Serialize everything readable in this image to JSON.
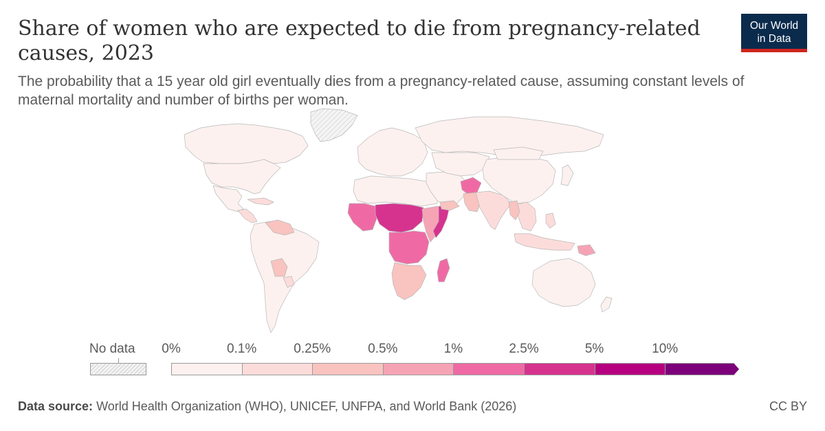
{
  "header": {
    "title": "Share of women who are expected to die from pregnancy-related causes, 2023",
    "subtitle": "The probability that a 15 year old girl eventually dies from a pregnancy-related cause, assuming constant levels of maternal mortality and number of births per woman."
  },
  "logo": {
    "line1": "Our World",
    "line2": "in Data"
  },
  "legend": {
    "no_data_label": "No data",
    "ticks": [
      "0%",
      "0.1%",
      "0.25%",
      "0.5%",
      "1%",
      "2.5%",
      "5%",
      "10%"
    ],
    "colors": [
      "#fdf1ef",
      "#fcdcda",
      "#f9c3bf",
      "#f6a3b5",
      "#ef6aa4",
      "#d6338f",
      "#b5007f",
      "#7b0079"
    ]
  },
  "map_regions": [
    {
      "name": "greenland",
      "bin": "nodata"
    },
    {
      "name": "canada",
      "bin": 0
    },
    {
      "name": "usa",
      "bin": 0
    },
    {
      "name": "mexico",
      "bin": 0
    },
    {
      "name": "central-america",
      "bin": 1
    },
    {
      "name": "caribbean",
      "bin": 1
    },
    {
      "name": "south-america",
      "bin": 0
    },
    {
      "name": "venezuela-guyana",
      "bin": 2
    },
    {
      "name": "bolivia",
      "bin": 2
    },
    {
      "name": "paraguay",
      "bin": 1
    },
    {
      "name": "europe",
      "bin": 0
    },
    {
      "name": "russia",
      "bin": 0
    },
    {
      "name": "north-africa",
      "bin": 0
    },
    {
      "name": "west-africa",
      "bin": 4
    },
    {
      "name": "sahel",
      "bin": 5
    },
    {
      "name": "central-africa",
      "bin": 4
    },
    {
      "name": "east-africa",
      "bin": 3
    },
    {
      "name": "somalia",
      "bin": 5
    },
    {
      "name": "southern-africa",
      "bin": 2
    },
    {
      "name": "madagascar",
      "bin": 4
    },
    {
      "name": "middle-east",
      "bin": 0
    },
    {
      "name": "yemen",
      "bin": 2
    },
    {
      "name": "afghanistan",
      "bin": 4
    },
    {
      "name": "pakistan",
      "bin": 2
    },
    {
      "name": "india",
      "bin": 1
    },
    {
      "name": "central-asia",
      "bin": 0
    },
    {
      "name": "china",
      "bin": 0
    },
    {
      "name": "mongolia",
      "bin": 0
    },
    {
      "name": "southeast-asia",
      "bin": 1
    },
    {
      "name": "myanmar",
      "bin": 2
    },
    {
      "name": "philippines",
      "bin": 1
    },
    {
      "name": "indonesia",
      "bin": 1
    },
    {
      "name": "papua-new-guinea",
      "bin": 3
    },
    {
      "name": "japan",
      "bin": 0
    },
    {
      "name": "australia",
      "bin": 0
    },
    {
      "name": "new-zealand",
      "bin": 0
    }
  ],
  "footer": {
    "source_label": "Data source:",
    "source_text": "World Health Organization (WHO), UNICEF, UNFPA, and World Bank (2026)",
    "license": "CC BY"
  }
}
